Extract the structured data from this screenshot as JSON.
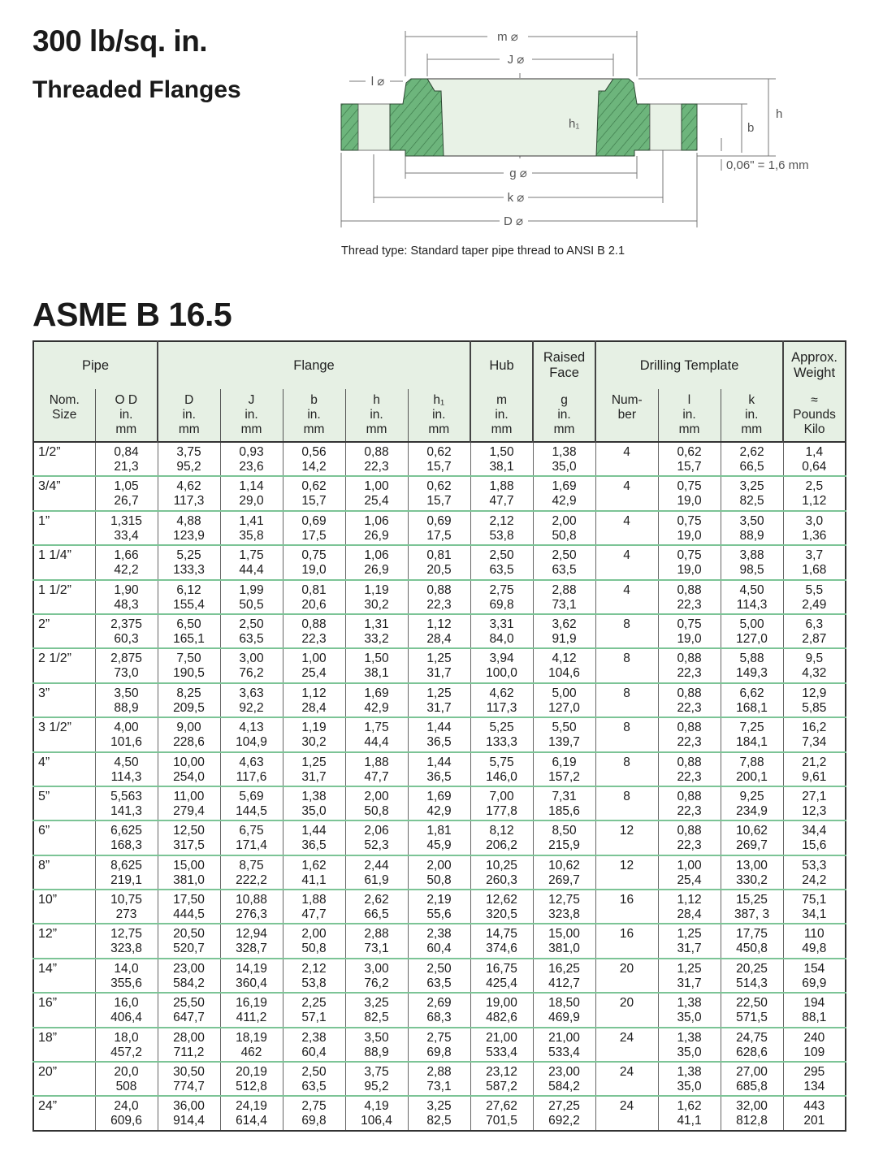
{
  "header": {
    "title": "300 lb/sq. in.",
    "subtitle": "Threaded Flanges",
    "standard": "ASME B 16.5"
  },
  "diagram": {
    "labels": {
      "m": "m ⌀",
      "J": "J ⌀",
      "l": "l ⌀",
      "h1": "h₁",
      "h": "h",
      "b": "b",
      "g": "g ⌀",
      "k": "k ⌀",
      "D": "D ⌀",
      "offset": "0,06\" = 1,6 mm"
    },
    "caption": "Thread type: Standard taper pipe thread to ANSI B 2.1",
    "colors": {
      "section": "#6db57c",
      "bore": "#e8f2e6",
      "lines": "#666666"
    }
  },
  "table": {
    "groups": [
      "Pipe",
      "Flange",
      "Hub",
      "Raised Face",
      "Drilling Template",
      "Approx. Weight"
    ],
    "columns": [
      [
        "Nom.",
        "Size",
        ""
      ],
      [
        "O D",
        "in.",
        "mm"
      ],
      [
        "D",
        "in.",
        "mm"
      ],
      [
        "J",
        "in.",
        "mm"
      ],
      [
        "b",
        "in.",
        "mm"
      ],
      [
        "h",
        "in.",
        "mm"
      ],
      [
        "h₁",
        "in.",
        "mm"
      ],
      [
        "m",
        "in.",
        "mm"
      ],
      [
        "g",
        "in.",
        "mm"
      ],
      [
        "Num-",
        "ber",
        ""
      ],
      [
        "l",
        "in.",
        "mm"
      ],
      [
        "k",
        "in.",
        "mm"
      ],
      [
        "≈",
        "Pounds",
        "Kilo"
      ]
    ],
    "rows": [
      {
        "size": "1/2”",
        "cells": [
          [
            "0,84",
            "21,3"
          ],
          [
            "3,75",
            "95,2"
          ],
          [
            "0,93",
            "23,6"
          ],
          [
            "0,56",
            "14,2"
          ],
          [
            "0,88",
            "22,3"
          ],
          [
            "0,62",
            "15,7"
          ],
          [
            "1,50",
            "38,1"
          ],
          [
            "1,38",
            "35,0"
          ],
          [
            "4"
          ],
          [
            "0,62",
            "15,7"
          ],
          [
            "2,62",
            "66,5"
          ],
          [
            "1,4",
            "0,64"
          ]
        ]
      },
      {
        "size": "3/4”",
        "cells": [
          [
            "1,05",
            "26,7"
          ],
          [
            "4,62",
            "117,3"
          ],
          [
            "1,14",
            "29,0"
          ],
          [
            "0,62",
            "15,7"
          ],
          [
            "1,00",
            "25,4"
          ],
          [
            "0,62",
            "15,7"
          ],
          [
            "1,88",
            "47,7"
          ],
          [
            "1,69",
            "42,9"
          ],
          [
            "4"
          ],
          [
            "0,75",
            "19,0"
          ],
          [
            "3,25",
            "82,5"
          ],
          [
            "2,5",
            "1,12"
          ]
        ]
      },
      {
        "size": "1”",
        "cells": [
          [
            "1,315",
            "33,4"
          ],
          [
            "4,88",
            "123,9"
          ],
          [
            "1,41",
            "35,8"
          ],
          [
            "0,69",
            "17,5"
          ],
          [
            "1,06",
            "26,9"
          ],
          [
            "0,69",
            "17,5"
          ],
          [
            "2,12",
            "53,8"
          ],
          [
            "2,00",
            "50,8"
          ],
          [
            "4"
          ],
          [
            "0,75",
            "19,0"
          ],
          [
            "3,50",
            "88,9"
          ],
          [
            "3,0",
            "1,36"
          ]
        ]
      },
      {
        "size": "1 1/4”",
        "cells": [
          [
            "1,66",
            "42,2"
          ],
          [
            "5,25",
            "133,3"
          ],
          [
            "1,75",
            "44,4"
          ],
          [
            "0,75",
            "19,0"
          ],
          [
            "1,06",
            "26,9"
          ],
          [
            "0,81",
            "20,5"
          ],
          [
            "2,50",
            "63,5"
          ],
          [
            "2,50",
            "63,5"
          ],
          [
            "4"
          ],
          [
            "0,75",
            "19,0"
          ],
          [
            "3,88",
            "98,5"
          ],
          [
            "3,7",
            "1,68"
          ]
        ]
      },
      {
        "size": "1 1/2”",
        "cells": [
          [
            "1,90",
            "48,3"
          ],
          [
            "6,12",
            "155,4"
          ],
          [
            "1,99",
            "50,5"
          ],
          [
            "0,81",
            "20,6"
          ],
          [
            "1,19",
            "30,2"
          ],
          [
            "0,88",
            "22,3"
          ],
          [
            "2,75",
            "69,8"
          ],
          [
            "2,88",
            "73,1"
          ],
          [
            "4"
          ],
          [
            "0,88",
            "22,3"
          ],
          [
            "4,50",
            "114,3"
          ],
          [
            "5,5",
            "2,49"
          ]
        ]
      },
      {
        "size": "2”",
        "cells": [
          [
            "2,375",
            "60,3"
          ],
          [
            "6,50",
            "165,1"
          ],
          [
            "2,50",
            "63,5"
          ],
          [
            "0,88",
            "22,3"
          ],
          [
            "1,31",
            "33,2"
          ],
          [
            "1,12",
            "28,4"
          ],
          [
            "3,31",
            "84,0"
          ],
          [
            "3,62",
            "91,9"
          ],
          [
            "8"
          ],
          [
            "0,75",
            "19,0"
          ],
          [
            "5,00",
            "127,0"
          ],
          [
            "6,3",
            "2,87"
          ]
        ]
      },
      {
        "size": "2 1/2”",
        "cells": [
          [
            "2,875",
            "73,0"
          ],
          [
            "7,50",
            "190,5"
          ],
          [
            "3,00",
            "76,2"
          ],
          [
            "1,00",
            "25,4"
          ],
          [
            "1,50",
            "38,1"
          ],
          [
            "1,25",
            "31,7"
          ],
          [
            "3,94",
            "100,0"
          ],
          [
            "4,12",
            "104,6"
          ],
          [
            "8"
          ],
          [
            "0,88",
            "22,3"
          ],
          [
            "5,88",
            "149,3"
          ],
          [
            "9,5",
            "4,32"
          ]
        ]
      },
      {
        "size": "3”",
        "cells": [
          [
            "3,50",
            "88,9"
          ],
          [
            "8,25",
            "209,5"
          ],
          [
            "3,63",
            "92,2"
          ],
          [
            "1,12",
            "28,4"
          ],
          [
            "1,69",
            "42,9"
          ],
          [
            "1,25",
            "31,7"
          ],
          [
            "4,62",
            "117,3"
          ],
          [
            "5,00",
            "127,0"
          ],
          [
            "8"
          ],
          [
            "0,88",
            "22,3"
          ],
          [
            "6,62",
            "168,1"
          ],
          [
            "12,9",
            "5,85"
          ]
        ]
      },
      {
        "size": "3 1/2”",
        "cells": [
          [
            "4,00",
            "101,6"
          ],
          [
            "9,00",
            "228,6"
          ],
          [
            "4,13",
            "104,9"
          ],
          [
            "1,19",
            "30,2"
          ],
          [
            "1,75",
            "44,4"
          ],
          [
            "1,44",
            "36,5"
          ],
          [
            "5,25",
            "133,3"
          ],
          [
            "5,50",
            "139,7"
          ],
          [
            "8"
          ],
          [
            "0,88",
            "22,3"
          ],
          [
            "7,25",
            "184,1"
          ],
          [
            "16,2",
            "7,34"
          ]
        ]
      },
      {
        "size": "4”",
        "cells": [
          [
            "4,50",
            "114,3"
          ],
          [
            "10,00",
            "254,0"
          ],
          [
            "4,63",
            "117,6"
          ],
          [
            "1,25",
            "31,7"
          ],
          [
            "1,88",
            "47,7"
          ],
          [
            "1,44",
            "36,5"
          ],
          [
            "5,75",
            "146,0"
          ],
          [
            "6,19",
            "157,2"
          ],
          [
            "8"
          ],
          [
            "0,88",
            "22,3"
          ],
          [
            "7,88",
            "200,1"
          ],
          [
            "21,2",
            "9,61"
          ]
        ]
      },
      {
        "size": "5”",
        "cells": [
          [
            "5,563",
            "141,3"
          ],
          [
            "11,00",
            "279,4"
          ],
          [
            "5,69",
            "144,5"
          ],
          [
            "1,38",
            "35,0"
          ],
          [
            "2,00",
            "50,8"
          ],
          [
            "1,69",
            "42,9"
          ],
          [
            "7,00",
            "177,8"
          ],
          [
            "7,31",
            "185,6"
          ],
          [
            "8"
          ],
          [
            "0,88",
            "22,3"
          ],
          [
            "9,25",
            "234,9"
          ],
          [
            "27,1",
            "12,3"
          ]
        ]
      },
      {
        "size": "6”",
        "cells": [
          [
            "6,625",
            "168,3"
          ],
          [
            "12,50",
            "317,5"
          ],
          [
            "6,75",
            "171,4"
          ],
          [
            "1,44",
            "36,5"
          ],
          [
            "2,06",
            "52,3"
          ],
          [
            "1,81",
            "45,9"
          ],
          [
            "8,12",
            "206,2"
          ],
          [
            "8,50",
            "215,9"
          ],
          [
            "12"
          ],
          [
            "0,88",
            "22,3"
          ],
          [
            "10,62",
            "269,7"
          ],
          [
            "34,4",
            "15,6"
          ]
        ]
      },
      {
        "size": "8”",
        "cells": [
          [
            "8,625",
            "219,1"
          ],
          [
            "15,00",
            "381,0"
          ],
          [
            "8,75",
            "222,2"
          ],
          [
            "1,62",
            "41,1"
          ],
          [
            "2,44",
            "61,9"
          ],
          [
            "2,00",
            "50,8"
          ],
          [
            "10,25",
            "260,3"
          ],
          [
            "10,62",
            "269,7"
          ],
          [
            "12"
          ],
          [
            "1,00",
            "25,4"
          ],
          [
            "13,00",
            "330,2"
          ],
          [
            "53,3",
            "24,2"
          ]
        ]
      },
      {
        "size": "10”",
        "cells": [
          [
            "10,75",
            "273"
          ],
          [
            "17,50",
            "444,5"
          ],
          [
            "10,88",
            "276,3"
          ],
          [
            "1,88",
            "47,7"
          ],
          [
            "2,62",
            "66,5"
          ],
          [
            "2,19",
            "55,6"
          ],
          [
            "12,62",
            "320,5"
          ],
          [
            "12,75",
            "323,8"
          ],
          [
            "16"
          ],
          [
            "1,12",
            "28,4"
          ],
          [
            "15,25",
            "387, 3"
          ],
          [
            "75,1",
            "34,1"
          ]
        ]
      },
      {
        "size": "12”",
        "cells": [
          [
            "12,75",
            "323,8"
          ],
          [
            "20,50",
            "520,7"
          ],
          [
            "12,94",
            "328,7"
          ],
          [
            "2,00",
            "50,8"
          ],
          [
            "2,88",
            "73,1"
          ],
          [
            "2,38",
            "60,4"
          ],
          [
            "14,75",
            "374,6"
          ],
          [
            "15,00",
            "381,0"
          ],
          [
            "16"
          ],
          [
            "1,25",
            "31,7"
          ],
          [
            "17,75",
            "450,8"
          ],
          [
            "110",
            "49,8"
          ]
        ]
      },
      {
        "size": "14”",
        "cells": [
          [
            "14,0",
            "355,6"
          ],
          [
            "23,00",
            "584,2"
          ],
          [
            "14,19",
            "360,4"
          ],
          [
            "2,12",
            "53,8"
          ],
          [
            "3,00",
            "76,2"
          ],
          [
            "2,50",
            "63,5"
          ],
          [
            "16,75",
            "425,4"
          ],
          [
            "16,25",
            "412,7"
          ],
          [
            "20"
          ],
          [
            "1,25",
            "31,7"
          ],
          [
            "20,25",
            "514,3"
          ],
          [
            "154",
            "69,9"
          ]
        ]
      },
      {
        "size": "16”",
        "cells": [
          [
            "16,0",
            "406,4"
          ],
          [
            "25,50",
            "647,7"
          ],
          [
            "16,19",
            "411,2"
          ],
          [
            "2,25",
            "57,1"
          ],
          [
            "3,25",
            "82,5"
          ],
          [
            "2,69",
            "68,3"
          ],
          [
            "19,00",
            "482,6"
          ],
          [
            "18,50",
            "469,9"
          ],
          [
            "20"
          ],
          [
            "1,38",
            "35,0"
          ],
          [
            "22,50",
            "571,5"
          ],
          [
            "194",
            "88,1"
          ]
        ]
      },
      {
        "size": "18”",
        "cells": [
          [
            "18,0",
            "457,2"
          ],
          [
            "28,00",
            "711,2"
          ],
          [
            "18,19",
            "462"
          ],
          [
            "2,38",
            "60,4"
          ],
          [
            "3,50",
            "88,9"
          ],
          [
            "2,75",
            "69,8"
          ],
          [
            "21,00",
            "533,4"
          ],
          [
            "21,00",
            "533,4"
          ],
          [
            "24"
          ],
          [
            "1,38",
            "35,0"
          ],
          [
            "24,75",
            "628,6"
          ],
          [
            "240",
            "109"
          ]
        ]
      },
      {
        "size": "20”",
        "cells": [
          [
            "20,0",
            "508"
          ],
          [
            "30,50",
            "774,7"
          ],
          [
            "20,19",
            "512,8"
          ],
          [
            "2,50",
            "63,5"
          ],
          [
            "3,75",
            "95,2"
          ],
          [
            "2,88",
            "73,1"
          ],
          [
            "23,12",
            "587,2"
          ],
          [
            "23,00",
            "584,2"
          ],
          [
            "24"
          ],
          [
            "1,38",
            "35,0"
          ],
          [
            "27,00",
            "685,8"
          ],
          [
            "295",
            "134"
          ]
        ]
      },
      {
        "size": "24”",
        "cells": [
          [
            "24,0",
            "609,6"
          ],
          [
            "36,00",
            "914,4"
          ],
          [
            "24,19",
            "614,4"
          ],
          [
            "2,75",
            "69,8"
          ],
          [
            "4,19",
            "106,4"
          ],
          [
            "3,25",
            "82,5"
          ],
          [
            "27,62",
            "701,5"
          ],
          [
            "27,25",
            "692,2"
          ],
          [
            "24"
          ],
          [
            "1,62",
            "41,1"
          ],
          [
            "32,00",
            "812,8"
          ],
          [
            "443",
            "201"
          ]
        ]
      }
    ]
  }
}
